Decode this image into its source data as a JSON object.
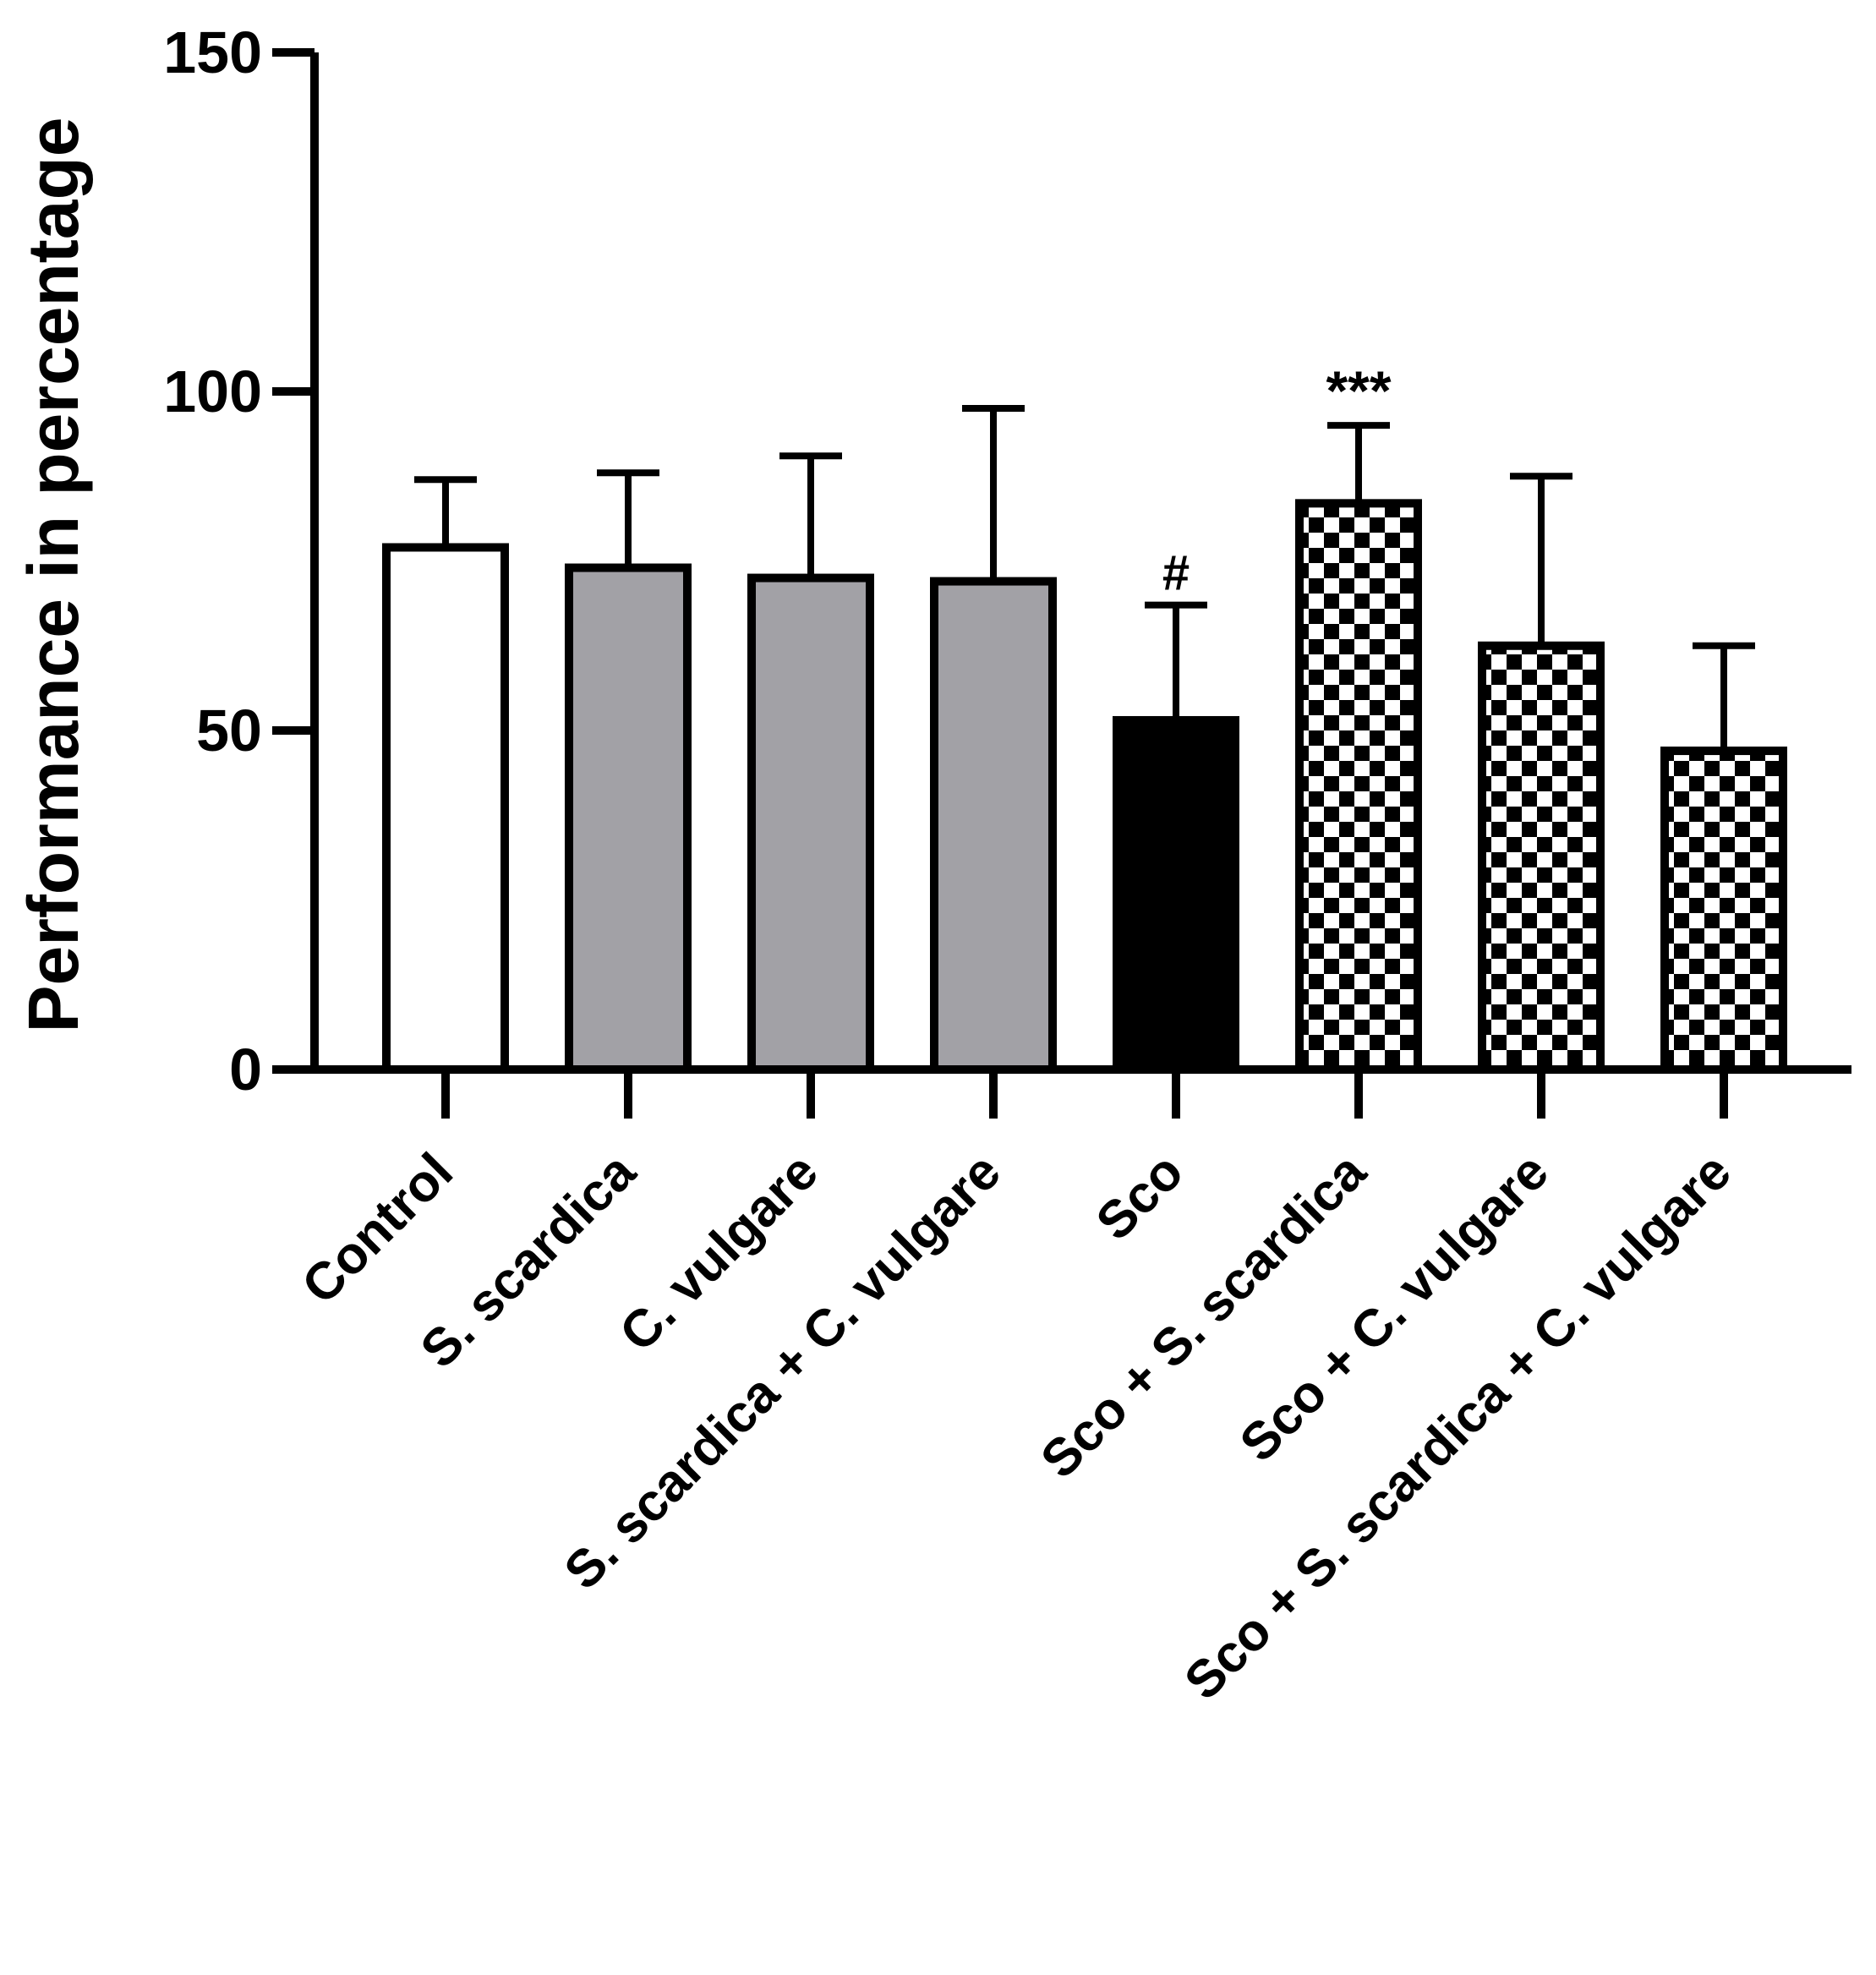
{
  "chart_data": {
    "type": "bar",
    "title": "",
    "xlabel": "",
    "ylabel": "Performance in percentage",
    "ylim": [
      0,
      150
    ],
    "yticks": [
      "0",
      "50",
      "100",
      "150"
    ],
    "categories": [
      "Control",
      "S. scardica",
      "C. vulgare",
      "S. scardica + C. vulgare",
      "Sco",
      "Sco + S. scardica",
      "Sco + C. vulgare",
      "Sco + S. scardica + C. vulgare"
    ],
    "values": [
      77,
      74,
      72.5,
      72,
      51.5,
      83.5,
      62.5,
      47
    ],
    "error_upper": [
      87,
      88,
      90.5,
      97.5,
      68.5,
      95,
      87.5,
      62.5
    ],
    "annotations": [
      "",
      "",
      "",
      "",
      "#",
      "***",
      "",
      ""
    ],
    "fills": [
      "white",
      "gray",
      "gray",
      "gray",
      "black",
      "checker",
      "checker",
      "checker"
    ],
    "colors": {
      "gray": "#a2a1a6",
      "black": "#000000",
      "white": "#ffffff"
    },
    "grid": false,
    "legend": "none"
  }
}
